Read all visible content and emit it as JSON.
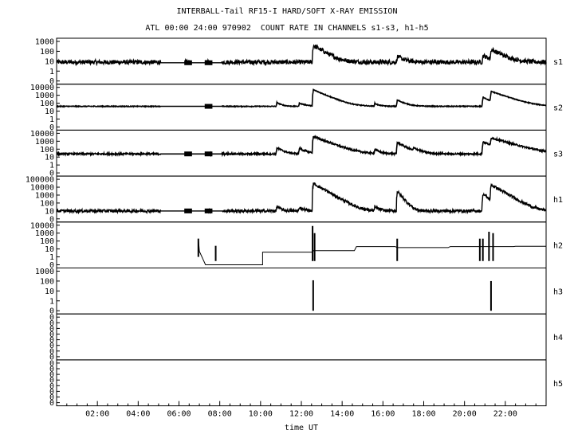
{
  "header": {
    "title": "INTERBALL-Tail RF15-I HARD/SOFT X-RAY EMISSION",
    "subtitle": "ATL 00:00 24:00 970902  COUNT RATE IN CHANNELS s1-s3, h1-h5"
  },
  "chart_data": {
    "type": "line",
    "xlabel": "time UT",
    "x_range_hours": [
      0,
      24
    ],
    "x_ticks": [
      "02:00",
      "04:00",
      "06:00",
      "08:00",
      "10:00",
      "12:00",
      "14:00",
      "16:00",
      "18:00",
      "20:00",
      "22:00"
    ],
    "y_scale": "log",
    "grid": false,
    "panels": [
      {
        "name": "s1",
        "y_ticks": [
          "1000",
          "100",
          "10",
          "1",
          "0"
        ],
        "data_gaps": [
          [
            5.1,
            6.3
          ],
          [
            6.6,
            7.3
          ],
          [
            7.6,
            8.1
          ]
        ],
        "baseline": 8,
        "gap_level": 7,
        "noise_decades": 0.22,
        "events": [
          {
            "t": 12.58,
            "peak": 400,
            "decay": 0.35
          },
          {
            "t": 16.7,
            "peak": 30,
            "decay": 0.3
          },
          {
            "t": 20.9,
            "peak": 40,
            "decay": 0.3
          },
          {
            "t": 21.3,
            "peak": 150,
            "decay": 0.4
          }
        ]
      },
      {
        "name": "s2",
        "y_ticks": [
          "10000",
          "1000",
          "100",
          "10",
          "1",
          "0"
        ],
        "data_gaps": [
          [
            5.1,
            7.3
          ],
          [
            7.6,
            8.1
          ]
        ],
        "baseline": 40,
        "gap_level": 40,
        "noise_decades": 0.05,
        "events": [
          {
            "t": 10.8,
            "peak": 120,
            "decay": 0.2
          },
          {
            "t": 11.9,
            "peak": 100,
            "decay": 0.3
          },
          {
            "t": 12.58,
            "peak": 5000,
            "decay": 0.4
          },
          {
            "t": 15.6,
            "peak": 90,
            "decay": 0.2
          },
          {
            "t": 16.7,
            "peak": 250,
            "decay": 0.3
          },
          {
            "t": 20.9,
            "peak": 600,
            "decay": 0.3
          },
          {
            "t": 21.3,
            "peak": 3000,
            "decay": 0.5
          }
        ]
      },
      {
        "name": "s3",
        "y_ticks": [
          "10000",
          "1000",
          "100",
          "10",
          "1",
          "0"
        ],
        "data_gaps": [
          [
            5.1,
            6.3
          ],
          [
            6.6,
            7.3
          ],
          [
            7.6,
            8.1
          ]
        ],
        "baseline": 25,
        "gap_level": 25,
        "noise_decades": 0.1,
        "events": [
          {
            "t": 10.8,
            "peak": 150,
            "decay": 0.25
          },
          {
            "t": 11.9,
            "peak": 120,
            "decay": 0.3
          },
          {
            "t": 12.58,
            "peak": 4000,
            "decay": 0.45
          },
          {
            "t": 15.6,
            "peak": 90,
            "decay": 0.2
          },
          {
            "t": 16.7,
            "peak": 700,
            "decay": 0.3
          },
          {
            "t": 17.5,
            "peak": 100,
            "decay": 0.3
          },
          {
            "t": 20.9,
            "peak": 900,
            "decay": 0.35
          },
          {
            "t": 21.3,
            "peak": 2500,
            "decay": 0.6
          }
        ]
      },
      {
        "name": "h1",
        "y_ticks": [
          "100000",
          "10000",
          "1000",
          "100",
          "10",
          "0"
        ],
        "data_gaps": [
          [
            5.1,
            6.3
          ],
          [
            6.6,
            7.3
          ],
          [
            7.6,
            8.1
          ]
        ],
        "baseline": 10,
        "gap_level": 10,
        "noise_decades": 0.18,
        "events": [
          {
            "t": 10.8,
            "peak": 40,
            "decay": 0.15
          },
          {
            "t": 11.9,
            "peak": 30,
            "decay": 0.2
          },
          {
            "t": 12.58,
            "peak": 30000,
            "decay": 0.3
          },
          {
            "t": 15.6,
            "peak": 30,
            "decay": 0.2
          },
          {
            "t": 16.7,
            "peak": 3000,
            "decay": 0.15
          },
          {
            "t": 20.9,
            "peak": 1500,
            "decay": 0.2
          },
          {
            "t": 21.3,
            "peak": 20000,
            "decay": 0.3
          }
        ]
      },
      {
        "name": "h2",
        "y_ticks": [
          "10000",
          "1000",
          "100",
          "10",
          "1",
          "0"
        ],
        "steps": [
          [
            6.95,
            200
          ],
          [
            7.0,
            5
          ],
          [
            7.3,
            0
          ],
          [
            7.8,
            0
          ],
          [
            10.1,
            0
          ],
          [
            10.1,
            4
          ],
          [
            12.5,
            4
          ],
          [
            12.6,
            6
          ],
          [
            14.6,
            6
          ],
          [
            14.7,
            20
          ],
          [
            16.6,
            20
          ],
          [
            16.7,
            15
          ],
          [
            19.2,
            15
          ],
          [
            19.3,
            20
          ],
          [
            22.4,
            20
          ],
          [
            22.5,
            22
          ],
          [
            24,
            22
          ]
        ],
        "spikes": [
          {
            "t": 6.95,
            "from": 1,
            "to": 200
          },
          {
            "t": 7.8,
            "from": 0.3,
            "to": 25
          },
          {
            "t": 12.55,
            "from": 0.3,
            "to": 8000
          },
          {
            "t": 12.65,
            "from": 0.3,
            "to": 1000
          },
          {
            "t": 16.7,
            "from": 0.3,
            "to": 200
          },
          {
            "t": 20.75,
            "from": 0.3,
            "to": 200
          },
          {
            "t": 20.9,
            "from": 0.3,
            "to": 200
          },
          {
            "t": 21.2,
            "from": 0.3,
            "to": 1500
          },
          {
            "t": 21.4,
            "from": 0.3,
            "to": 1000
          }
        ]
      },
      {
        "name": "h3",
        "y_ticks": [
          "1000",
          "100",
          "10",
          "1",
          "0"
        ],
        "spikes": [
          {
            "t": 12.58,
            "from": 0,
            "to": 120
          },
          {
            "t": 21.3,
            "from": 0,
            "to": 100
          }
        ]
      },
      {
        "name": "h4",
        "y_ticks": [
          "0",
          "0",
          "0",
          "0",
          "0",
          "0",
          "0",
          "0"
        ]
      },
      {
        "name": "h5",
        "y_ticks": [
          "0",
          "0",
          "0",
          "0",
          "0",
          "0",
          "0",
          "0"
        ]
      }
    ]
  }
}
